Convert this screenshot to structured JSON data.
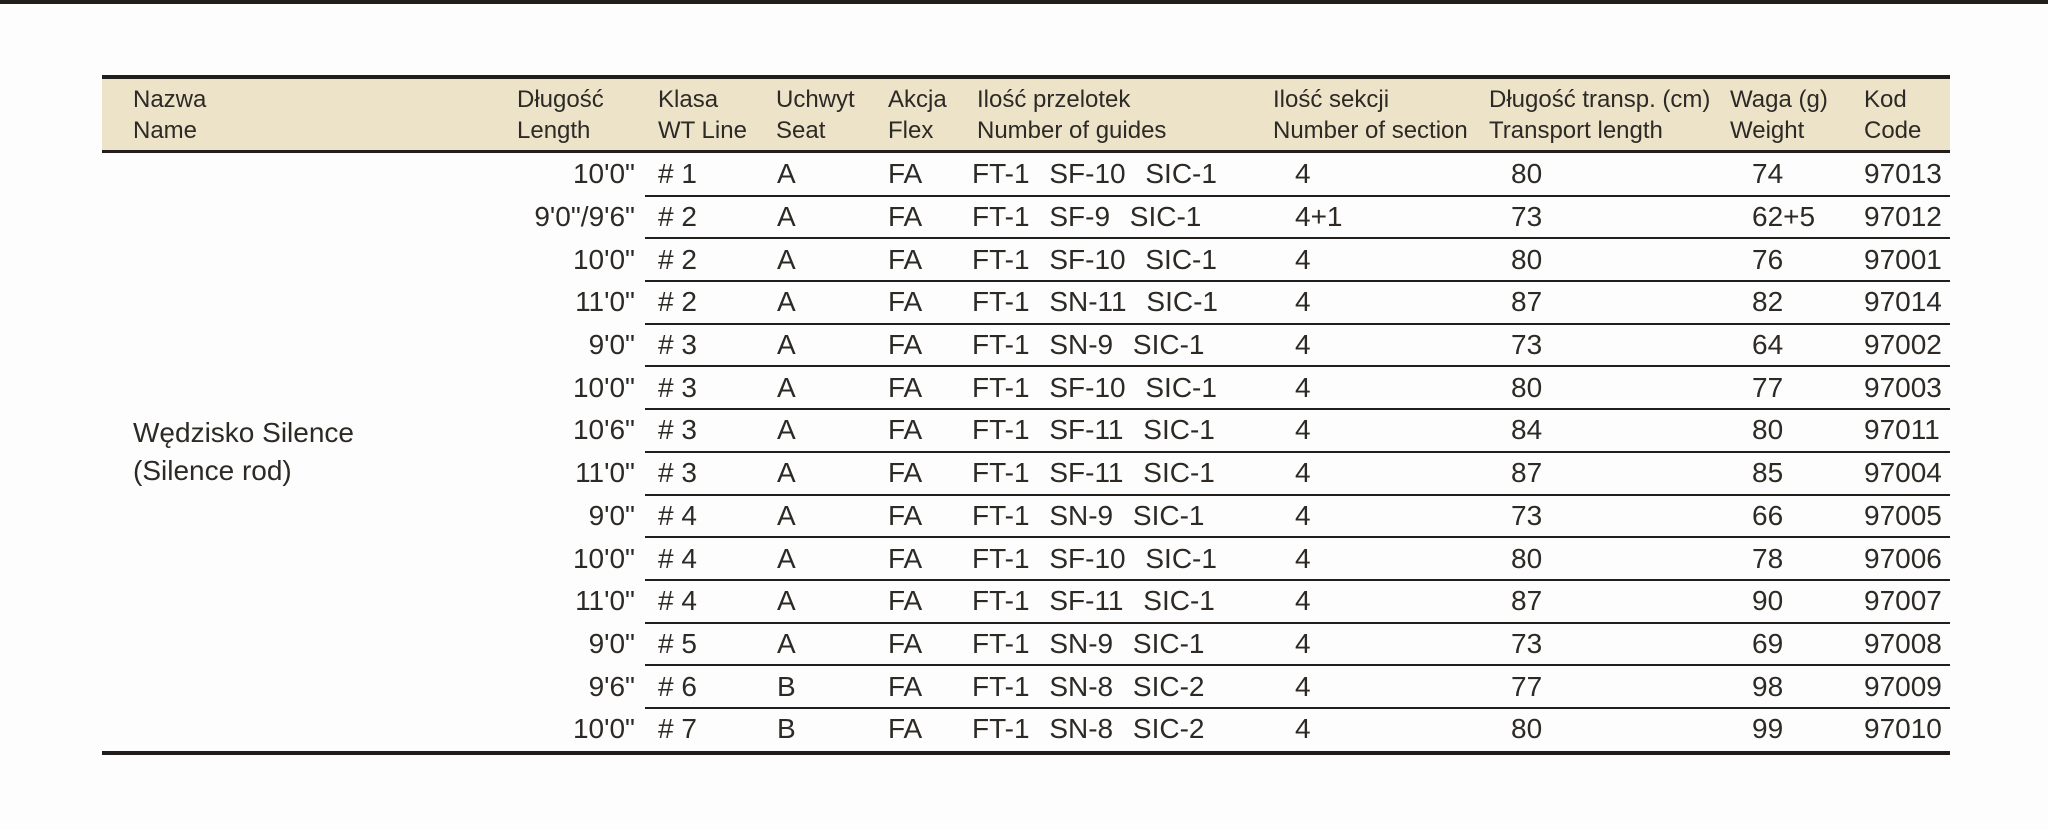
{
  "page": {
    "background_color": "#fdfdfd",
    "top_rule_color": "#211e1c"
  },
  "table": {
    "header_bg_color": "#ece3c9",
    "rule_color": "#211e1c",
    "text_color": "#2d2a26",
    "columns": [
      {
        "id": "name",
        "label_pl": "Nazwa",
        "label_en": "Name"
      },
      {
        "id": "length",
        "label_pl": "Długość",
        "label_en": "Length"
      },
      {
        "id": "wt_line",
        "label_pl": "Klasa",
        "label_en": "WT Line"
      },
      {
        "id": "seat",
        "label_pl": "Uchwyt",
        "label_en": "Seat"
      },
      {
        "id": "flex",
        "label_pl": "Akcja",
        "label_en": "Flex"
      },
      {
        "id": "guides",
        "label_pl": "Ilość przelotek",
        "label_en": "Number of guides"
      },
      {
        "id": "sections",
        "label_pl": "Ilość sekcji",
        "label_en": "Number of section"
      },
      {
        "id": "transport",
        "label_pl": "Długość transp. (cm)",
        "label_en": "Transport length"
      },
      {
        "id": "weight",
        "label_pl": "Waga (g)",
        "label_en": "Weight"
      },
      {
        "id": "code",
        "label_pl": "Kod",
        "label_en": "Code"
      }
    ],
    "product": {
      "name_pl": "Wędzisko Silence",
      "name_en": "(Silence rod)"
    },
    "rows": [
      {
        "length": "10'0\"",
        "wt_line": "# 1",
        "seat": "A",
        "flex": "FA",
        "guides": "FT-1 SF-10 SIC-1",
        "sections": "4",
        "transport": "80",
        "weight": "74",
        "code": "97013"
      },
      {
        "length": "9'0\"/9'6\"",
        "wt_line": "# 2",
        "seat": "A",
        "flex": "FA",
        "guides": "FT-1 SF-9 SIC-1",
        "sections": "4+1",
        "transport": "73",
        "weight": "62+5",
        "code": "97012"
      },
      {
        "length": "10'0\"",
        "wt_line": "# 2",
        "seat": "A",
        "flex": "FA",
        "guides": "FT-1 SF-10 SIC-1",
        "sections": "4",
        "transport": "80",
        "weight": "76",
        "code": "97001"
      },
      {
        "length": "11'0\"",
        "wt_line": "# 2",
        "seat": "A",
        "flex": "FA",
        "guides": "FT-1 SN-11 SIC-1",
        "sections": "4",
        "transport": "87",
        "weight": "82",
        "code": "97014"
      },
      {
        "length": "9'0\"",
        "wt_line": "# 3",
        "seat": "A",
        "flex": "FA",
        "guides": "FT-1 SN-9 SIC-1",
        "sections": "4",
        "transport": "73",
        "weight": "64",
        "code": "97002"
      },
      {
        "length": "10'0\"",
        "wt_line": "# 3",
        "seat": "A",
        "flex": "FA",
        "guides": "FT-1 SF-10 SIC-1",
        "sections": "4",
        "transport": "80",
        "weight": "77",
        "code": "97003"
      },
      {
        "length": "10'6\"",
        "wt_line": "# 3",
        "seat": "A",
        "flex": "FA",
        "guides": "FT-1 SF-11 SIC-1",
        "sections": "4",
        "transport": "84",
        "weight": "80",
        "code": "97011"
      },
      {
        "length": "11'0\"",
        "wt_line": "# 3",
        "seat": "A",
        "flex": "FA",
        "guides": "FT-1 SF-11 SIC-1",
        "sections": "4",
        "transport": "87",
        "weight": "85",
        "code": "97004"
      },
      {
        "length": "9'0\"",
        "wt_line": "# 4",
        "seat": "A",
        "flex": "FA",
        "guides": "FT-1 SN-9 SIC-1",
        "sections": "4",
        "transport": "73",
        "weight": "66",
        "code": "97005"
      },
      {
        "length": "10'0\"",
        "wt_line": "# 4",
        "seat": "A",
        "flex": "FA",
        "guides": "FT-1 SF-10 SIC-1",
        "sections": "4",
        "transport": "80",
        "weight": "78",
        "code": "97006"
      },
      {
        "length": "11'0\"",
        "wt_line": "# 4",
        "seat": "A",
        "flex": "FA",
        "guides": "FT-1 SF-11 SIC-1",
        "sections": "4",
        "transport": "87",
        "weight": "90",
        "code": "97007"
      },
      {
        "length": "9'0\"",
        "wt_line": "# 5",
        "seat": "A",
        "flex": "FA",
        "guides": "FT-1 SN-9 SIC-1",
        "sections": "4",
        "transport": "73",
        "weight": "69",
        "code": "97008"
      },
      {
        "length": "9'6\"",
        "wt_line": "# 6",
        "seat": "B",
        "flex": "FA",
        "guides": "FT-1 SN-8 SIC-2",
        "sections": "4",
        "transport": "77",
        "weight": "98",
        "code": "97009"
      },
      {
        "length": "10'0\"",
        "wt_line": "# 7",
        "seat": "B",
        "flex": "FA",
        "guides": "FT-1 SN-8 SIC-2",
        "sections": "4",
        "transport": "80",
        "weight": "99",
        "code": "97010"
      }
    ]
  }
}
